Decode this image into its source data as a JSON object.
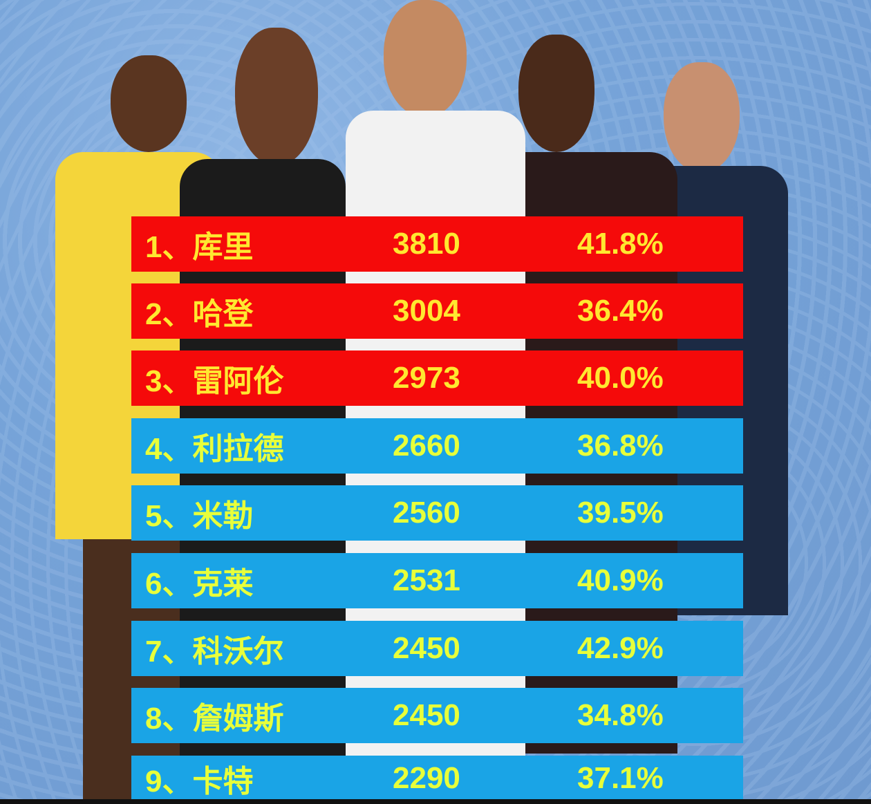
{
  "colors": {
    "top3_row": "#f50a0a",
    "other_row": "#1aa4e6",
    "text": "#f2ff3a",
    "background": "#76a3d8"
  },
  "rows": [
    {
      "name": "1、库里",
      "points": "3810",
      "pct": "41.8%",
      "highlight": true
    },
    {
      "name": "2、哈登",
      "points": "3004",
      "pct": "36.4%",
      "highlight": true
    },
    {
      "name": "3、雷阿伦",
      "points": "2973",
      "pct": "40.0%",
      "highlight": true
    },
    {
      "name": "4、利拉德",
      "points": "2660",
      "pct": "36.8%",
      "highlight": false
    },
    {
      "name": "5、米勒",
      "points": "2560",
      "pct": "39.5%",
      "highlight": false
    },
    {
      "name": "6、克莱",
      "points": "2531",
      "pct": "40.9%",
      "highlight": false
    },
    {
      "name": "7、科沃尔",
      "points": "2450",
      "pct": "42.9%",
      "highlight": false
    },
    {
      "name": "8、詹姆斯",
      "points": "2450",
      "pct": "34.8%",
      "highlight": false
    },
    {
      "name": "9、卡特",
      "points": "2290",
      "pct": "37.1%",
      "highlight": false
    }
  ]
}
